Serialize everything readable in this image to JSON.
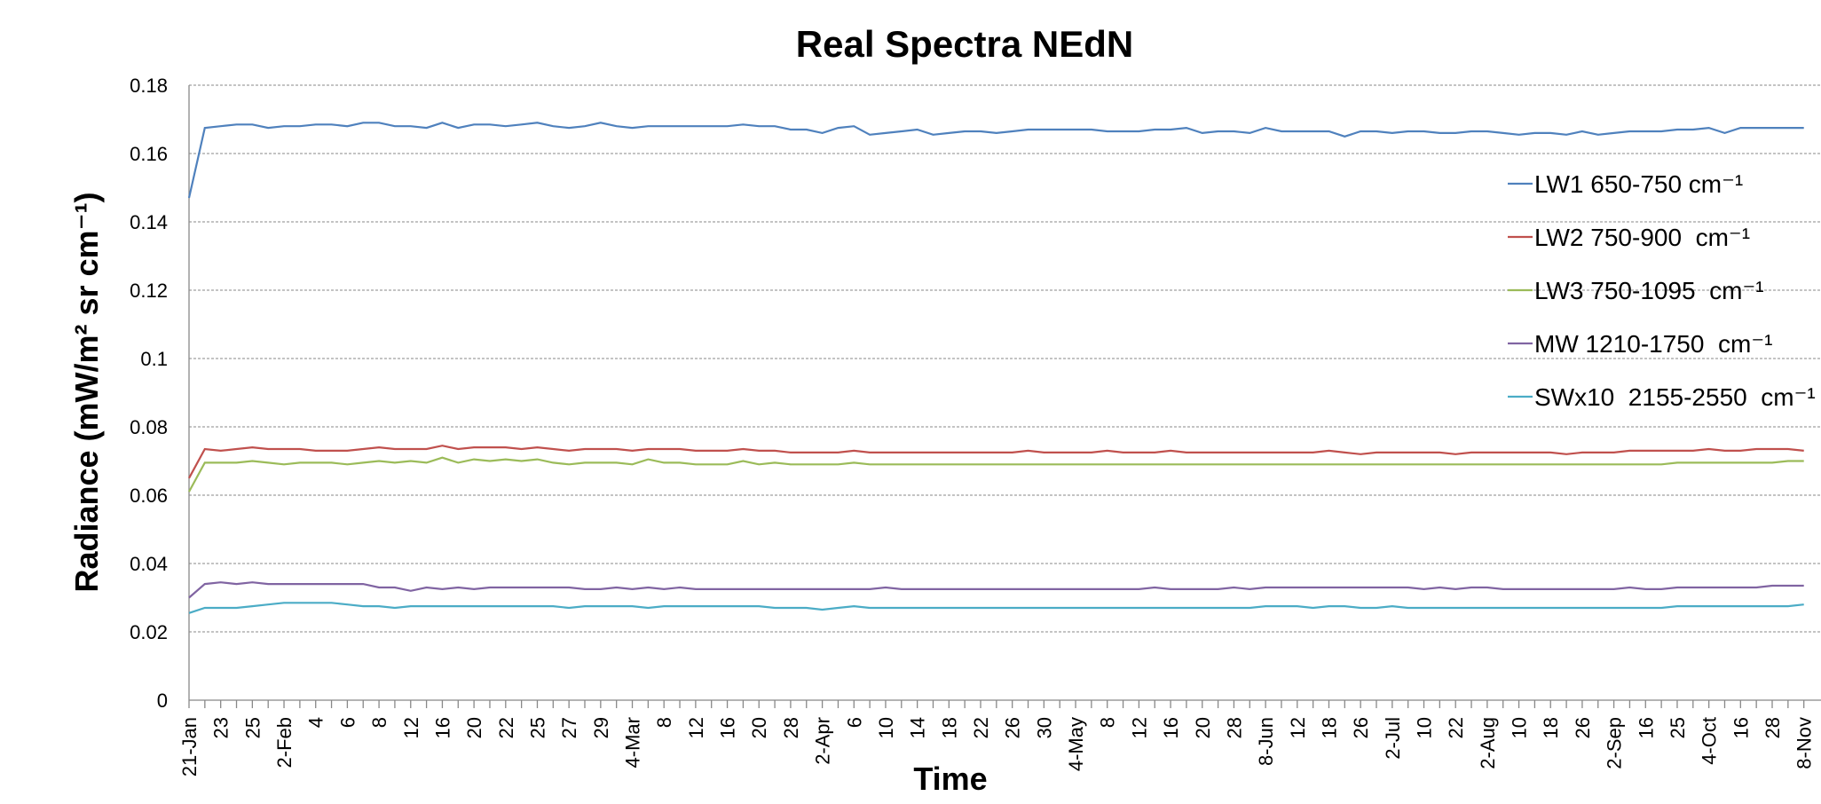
{
  "chart_data": {
    "type": "line",
    "title": "Real Spectra NEdN",
    "x_label": "Time",
    "y_label": "Radiance (mW/m² sr cm⁻¹)",
    "categories": [
      "21-Jan",
      null,
      "23",
      null,
      "25",
      null,
      "2-Feb",
      null,
      "4",
      null,
      "6",
      null,
      "8",
      null,
      "12",
      null,
      "16",
      null,
      "20",
      null,
      "22",
      null,
      "25",
      null,
      "27",
      null,
      "29",
      null,
      "4-Mar",
      null,
      "8",
      null,
      "12",
      null,
      "16",
      null,
      "20",
      null,
      "28",
      null,
      "2-Apr",
      null,
      "6",
      null,
      "10",
      null,
      "14",
      null,
      "18",
      null,
      "22",
      null,
      "26",
      null,
      "30",
      null,
      "4-May",
      null,
      "8",
      null,
      "12",
      null,
      "16",
      null,
      "20",
      null,
      "28",
      null,
      "8-Jun",
      null,
      "12",
      null,
      "18",
      null,
      "26",
      null,
      "2-Jul",
      null,
      "10",
      null,
      "22",
      null,
      "2-Aug",
      null,
      "10",
      null,
      "18",
      null,
      "26",
      null,
      "2-Sep",
      null,
      "16",
      null,
      "25",
      null,
      "4-Oct",
      null,
      "16",
      null,
      "28",
      null,
      "8-Nov"
    ],
    "ylim": [
      0,
      0.18
    ],
    "yticks": [
      0,
      0.02,
      0.04,
      0.06,
      0.08,
      0.1,
      0.12,
      0.14,
      0.16,
      0.18
    ],
    "grid": true,
    "legend": "upper right",
    "series": [
      {
        "name": "LW1 650-750 cm⁻¹",
        "color": "#4f81bd",
        "values": [
          0.147,
          0.1675,
          0.168,
          0.1685,
          0.1685,
          0.1675,
          0.168,
          0.168,
          0.1685,
          0.1685,
          0.168,
          0.169,
          0.169,
          0.168,
          0.168,
          0.1675,
          0.169,
          0.1675,
          0.1685,
          0.1685,
          0.168,
          0.1685,
          0.169,
          0.168,
          0.1675,
          0.168,
          0.169,
          0.168,
          0.1675,
          0.168,
          0.168,
          0.168,
          0.168,
          0.168,
          0.168,
          0.1685,
          0.168,
          0.168,
          0.167,
          0.167,
          0.166,
          0.1675,
          0.168,
          0.1655,
          0.166,
          0.1665,
          0.167,
          0.1655,
          0.166,
          0.1665,
          0.1665,
          0.166,
          0.1665,
          0.167,
          0.167,
          0.167,
          0.167,
          0.167,
          0.1665,
          0.1665,
          0.1665,
          0.167,
          0.167,
          0.1675,
          0.166,
          0.1665,
          0.1665,
          0.166,
          0.1675,
          0.1665,
          0.1665,
          0.1665,
          0.1665,
          0.165,
          0.1665,
          0.1665,
          0.166,
          0.1665,
          0.1665,
          0.166,
          0.166,
          0.1665,
          0.1665,
          0.166,
          0.1655,
          0.166,
          0.166,
          0.1655,
          0.1665,
          0.1655,
          0.166,
          0.1665,
          0.1665,
          0.1665,
          0.167,
          0.167,
          0.1675,
          0.166,
          0.1675,
          0.1675,
          0.1675,
          0.1675,
          0.1675
        ]
      },
      {
        "name": "LW2 750-900  cm⁻¹",
        "color": "#c0504d",
        "values": [
          0.065,
          0.0735,
          0.073,
          0.0735,
          0.074,
          0.0735,
          0.0735,
          0.0735,
          0.073,
          0.073,
          0.073,
          0.0735,
          0.074,
          0.0735,
          0.0735,
          0.0735,
          0.0745,
          0.0735,
          0.074,
          0.074,
          0.074,
          0.0735,
          0.074,
          0.0735,
          0.073,
          0.0735,
          0.0735,
          0.0735,
          0.073,
          0.0735,
          0.0735,
          0.0735,
          0.073,
          0.073,
          0.073,
          0.0735,
          0.073,
          0.073,
          0.0725,
          0.0725,
          0.0725,
          0.0725,
          0.073,
          0.0725,
          0.0725,
          0.0725,
          0.0725,
          0.0725,
          0.0725,
          0.0725,
          0.0725,
          0.0725,
          0.0725,
          0.073,
          0.0725,
          0.0725,
          0.0725,
          0.0725,
          0.073,
          0.0725,
          0.0725,
          0.0725,
          0.073,
          0.0725,
          0.0725,
          0.0725,
          0.0725,
          0.0725,
          0.0725,
          0.0725,
          0.0725,
          0.0725,
          0.073,
          0.0725,
          0.072,
          0.0725,
          0.0725,
          0.0725,
          0.0725,
          0.0725,
          0.072,
          0.0725,
          0.0725,
          0.0725,
          0.0725,
          0.0725,
          0.0725,
          0.072,
          0.0725,
          0.0725,
          0.0725,
          0.073,
          0.073,
          0.073,
          0.073,
          0.073,
          0.0735,
          0.073,
          0.073,
          0.0735,
          0.0735,
          0.0735,
          0.073
        ]
      },
      {
        "name": "LW3 750-1095  cm⁻¹",
        "color": "#9bbb59",
        "values": [
          0.061,
          0.0695,
          0.0695,
          0.0695,
          0.07,
          0.0695,
          0.069,
          0.0695,
          0.0695,
          0.0695,
          0.069,
          0.0695,
          0.07,
          0.0695,
          0.07,
          0.0695,
          0.071,
          0.0695,
          0.0705,
          0.07,
          0.0705,
          0.07,
          0.0705,
          0.0695,
          0.069,
          0.0695,
          0.0695,
          0.0695,
          0.069,
          0.0705,
          0.0695,
          0.0695,
          0.069,
          0.069,
          0.069,
          0.07,
          0.069,
          0.0695,
          0.069,
          0.069,
          0.069,
          0.069,
          0.0695,
          0.069,
          0.069,
          0.069,
          0.069,
          0.069,
          0.069,
          0.069,
          0.069,
          0.069,
          0.069,
          0.069,
          0.069,
          0.069,
          0.069,
          0.069,
          0.069,
          0.069,
          0.069,
          0.069,
          0.069,
          0.069,
          0.069,
          0.069,
          0.069,
          0.069,
          0.069,
          0.069,
          0.069,
          0.069,
          0.069,
          0.069,
          0.069,
          0.069,
          0.069,
          0.069,
          0.069,
          0.069,
          0.069,
          0.069,
          0.069,
          0.069,
          0.069,
          0.069,
          0.069,
          0.069,
          0.069,
          0.069,
          0.069,
          0.069,
          0.069,
          0.069,
          0.0695,
          0.0695,
          0.0695,
          0.0695,
          0.0695,
          0.0695,
          0.0695,
          0.07,
          0.07
        ]
      },
      {
        "name": "MW 1210-1750  cm⁻¹",
        "color": "#8064a2",
        "values": [
          0.03,
          0.034,
          0.0345,
          0.034,
          0.0345,
          0.034,
          0.034,
          0.034,
          0.034,
          0.034,
          0.034,
          0.034,
          0.033,
          0.033,
          0.032,
          0.033,
          0.0325,
          0.033,
          0.0325,
          0.033,
          0.033,
          0.033,
          0.033,
          0.033,
          0.033,
          0.0325,
          0.0325,
          0.033,
          0.0325,
          0.033,
          0.0325,
          0.033,
          0.0325,
          0.0325,
          0.0325,
          0.0325,
          0.0325,
          0.0325,
          0.0325,
          0.0325,
          0.0325,
          0.0325,
          0.0325,
          0.0325,
          0.033,
          0.0325,
          0.0325,
          0.0325,
          0.0325,
          0.0325,
          0.0325,
          0.0325,
          0.0325,
          0.0325,
          0.0325,
          0.0325,
          0.0325,
          0.0325,
          0.0325,
          0.0325,
          0.0325,
          0.033,
          0.0325,
          0.0325,
          0.0325,
          0.0325,
          0.033,
          0.0325,
          0.033,
          0.033,
          0.033,
          0.033,
          0.033,
          0.033,
          0.033,
          0.033,
          0.033,
          0.033,
          0.0325,
          0.033,
          0.0325,
          0.033,
          0.033,
          0.0325,
          0.0325,
          0.0325,
          0.0325,
          0.0325,
          0.0325,
          0.0325,
          0.0325,
          0.033,
          0.0325,
          0.0325,
          0.033,
          0.033,
          0.033,
          0.033,
          0.033,
          0.033,
          0.0335,
          0.0335,
          0.0335
        ]
      },
      {
        "name": "SWx10  2155-2550  cm⁻¹",
        "color": "#4bacc6",
        "values": [
          0.0255,
          0.027,
          0.027,
          0.027,
          0.0275,
          0.028,
          0.0285,
          0.0285,
          0.0285,
          0.0285,
          0.028,
          0.0275,
          0.0275,
          0.027,
          0.0275,
          0.0275,
          0.0275,
          0.0275,
          0.0275,
          0.0275,
          0.0275,
          0.0275,
          0.0275,
          0.0275,
          0.027,
          0.0275,
          0.0275,
          0.0275,
          0.0275,
          0.027,
          0.0275,
          0.0275,
          0.0275,
          0.0275,
          0.0275,
          0.0275,
          0.0275,
          0.027,
          0.027,
          0.027,
          0.0265,
          0.027,
          0.0275,
          0.027,
          0.027,
          0.027,
          0.027,
          0.027,
          0.027,
          0.027,
          0.027,
          0.027,
          0.027,
          0.027,
          0.027,
          0.027,
          0.027,
          0.027,
          0.027,
          0.027,
          0.027,
          0.027,
          0.027,
          0.027,
          0.027,
          0.027,
          0.027,
          0.027,
          0.0275,
          0.0275,
          0.0275,
          0.027,
          0.0275,
          0.0275,
          0.027,
          0.027,
          0.0275,
          0.027,
          0.027,
          0.027,
          0.027,
          0.027,
          0.027,
          0.027,
          0.027,
          0.027,
          0.027,
          0.027,
          0.027,
          0.027,
          0.027,
          0.027,
          0.027,
          0.027,
          0.0275,
          0.0275,
          0.0275,
          0.0275,
          0.0275,
          0.0275,
          0.0275,
          0.0275,
          0.028
        ]
      }
    ]
  }
}
